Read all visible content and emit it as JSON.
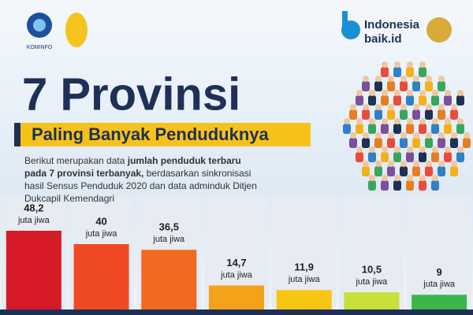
{
  "header": {
    "logo_left": "KOMINFO",
    "logo_right_line1": "Indonesia",
    "logo_right_line2": "baik.id"
  },
  "title": "7 Provinsi",
  "subtitle": "Paling Banyak Penduduknya",
  "description": [
    "Berikut merupakan data",
    "jumlah penduduk terbaru pada 7 provinsi terbanyak,",
    "berdasarkan sinkronisasi hasil Sensus Penduduk 2020 dan data adminduk Ditjen Dukcapil Kemendagri"
  ],
  "chart_data": {
    "type": "bar",
    "values": [
      48.2,
      40,
      36.5,
      14.7,
      11.9,
      10.5,
      9
    ],
    "value_labels": [
      "48,2",
      "40",
      "36,5",
      "14,7",
      "11,9",
      "10,5",
      "9"
    ],
    "unit_label": "juta jiwa",
    "colors": [
      "#d71a28",
      "#ef4a23",
      "#f26a21",
      "#f6a11a",
      "#f8c515",
      "#c9df3a",
      "#3cb54a"
    ]
  }
}
